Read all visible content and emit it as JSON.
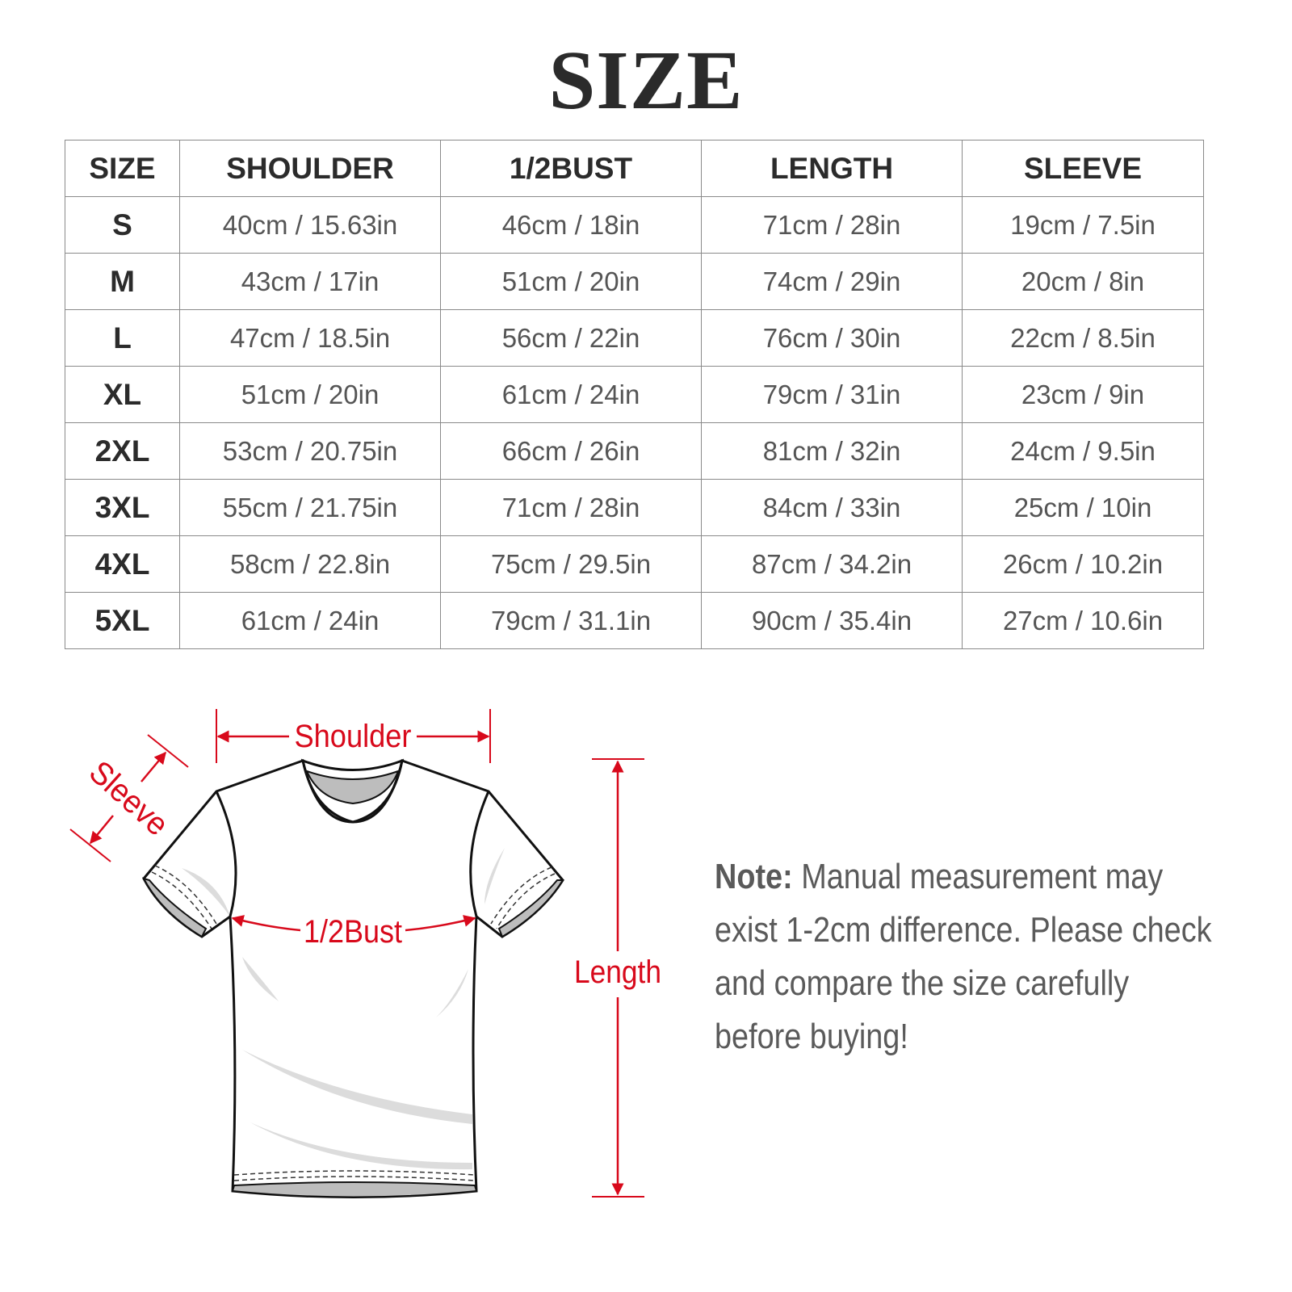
{
  "title": "SIZE",
  "table": {
    "headers": [
      "SIZE",
      "SHOULDER",
      "1/2BUST",
      "LENGTH",
      "SLEEVE"
    ],
    "rows": [
      [
        "S",
        "40cm / 15.63in",
        "46cm / 18in",
        "71cm / 28in",
        "19cm / 7.5in"
      ],
      [
        "M",
        "43cm / 17in",
        "51cm / 20in",
        "74cm / 29in",
        "20cm / 8in"
      ],
      [
        "L",
        "47cm / 18.5in",
        "56cm / 22in",
        "76cm / 30in",
        "22cm / 8.5in"
      ],
      [
        "XL",
        "51cm / 20in",
        "61cm / 24in",
        "79cm / 31in",
        "23cm / 9in"
      ],
      [
        "2XL",
        "53cm / 20.75in",
        "66cm / 26in",
        "81cm / 32in",
        "24cm / 9.5in"
      ],
      [
        "3XL",
        "55cm / 21.75in",
        "71cm / 28in",
        "84cm / 33in",
        "25cm / 10in"
      ],
      [
        "4XL",
        "58cm / 22.8in",
        "75cm / 29.5in",
        "87cm / 34.2in",
        "26cm / 10.2in"
      ],
      [
        "5XL",
        "61cm / 24in",
        "79cm / 31.1in",
        "90cm / 35.4in",
        "27cm / 10.6in"
      ]
    ]
  },
  "diagram": {
    "shoulder_label": "Shoulder",
    "sleeve_label": "Sleeve",
    "bust_label": "1/2Bust",
    "length_label": "Length",
    "accent_color": "#d8091b"
  },
  "note": {
    "label": "Note:",
    "text": " Manual measurement may exist 1-2cm difference. Please check and compare the size carefully before buying!"
  }
}
